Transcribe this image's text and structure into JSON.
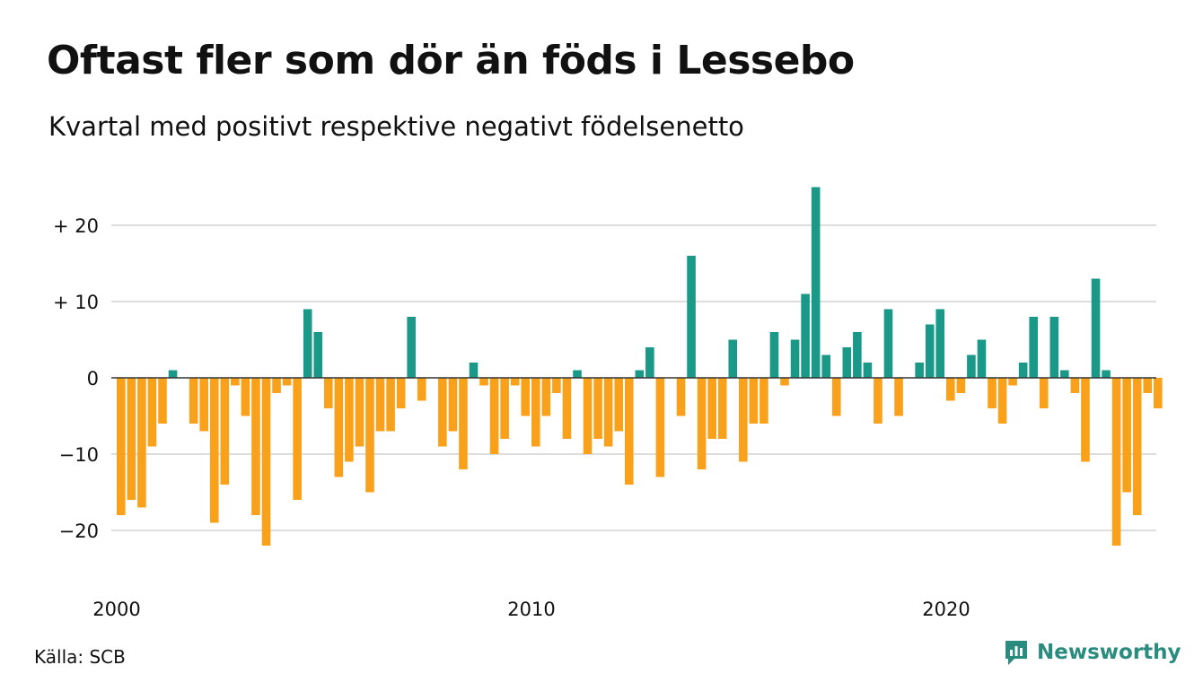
{
  "title": "Oftast fler som dör än föds i Lessebo",
  "subtitle": "Kvartal med positivt respektive negativt födelsenetto",
  "source": "Källa: SCB",
  "brand": {
    "name": "Newsworthy",
    "icon": "newsworthy-logo-icon"
  },
  "colors": {
    "positive": "#1a9988",
    "negative": "#f9a11b",
    "grid": "#dddddd",
    "zero": "#333333"
  },
  "chart_data": {
    "type": "bar",
    "title": "Oftast fler som dör än föds i Lessebo",
    "subtitle": "Kvartal med positivt respektive negativt födelsenetto",
    "x_start_year": 2000,
    "periods_per_year": 4,
    "x_tick_labels": [
      "2000",
      "2010",
      "2020"
    ],
    "y_tick_values": [
      20,
      10,
      0,
      -10,
      -20
    ],
    "y_tick_labels": [
      "+ 20",
      "+ 10",
      "0",
      "−10",
      "−20"
    ],
    "ylim": [
      -25,
      25
    ],
    "grid": true,
    "values": [
      -18,
      -16,
      -17,
      -9,
      -6,
      1,
      0,
      -6,
      -7,
      -19,
      -14,
      -1,
      -5,
      -18,
      -22,
      -2,
      -1,
      -16,
      9,
      6,
      -4,
      -13,
      -11,
      -9,
      -15,
      -7,
      -7,
      -4,
      8,
      -3,
      0,
      -9,
      -7,
      -12,
      2,
      -1,
      -10,
      -8,
      -1,
      -5,
      -9,
      -5,
      -2,
      -8,
      1,
      -10,
      -8,
      -9,
      -7,
      -14,
      1,
      4,
      -13,
      0,
      -5,
      16,
      -12,
      -8,
      -8,
      5,
      -11,
      -6,
      -6,
      6,
      -1,
      5,
      11,
      25,
      3,
      -5,
      4,
      6,
      2,
      -6,
      9,
      -5,
      0,
      2,
      7,
      9,
      -3,
      -2,
      3,
      5,
      -4,
      -6,
      -1,
      2,
      8,
      -4,
      8,
      1,
      -2,
      -11,
      13,
      1,
      -22,
      -15,
      -18,
      -2,
      -4
    ]
  }
}
